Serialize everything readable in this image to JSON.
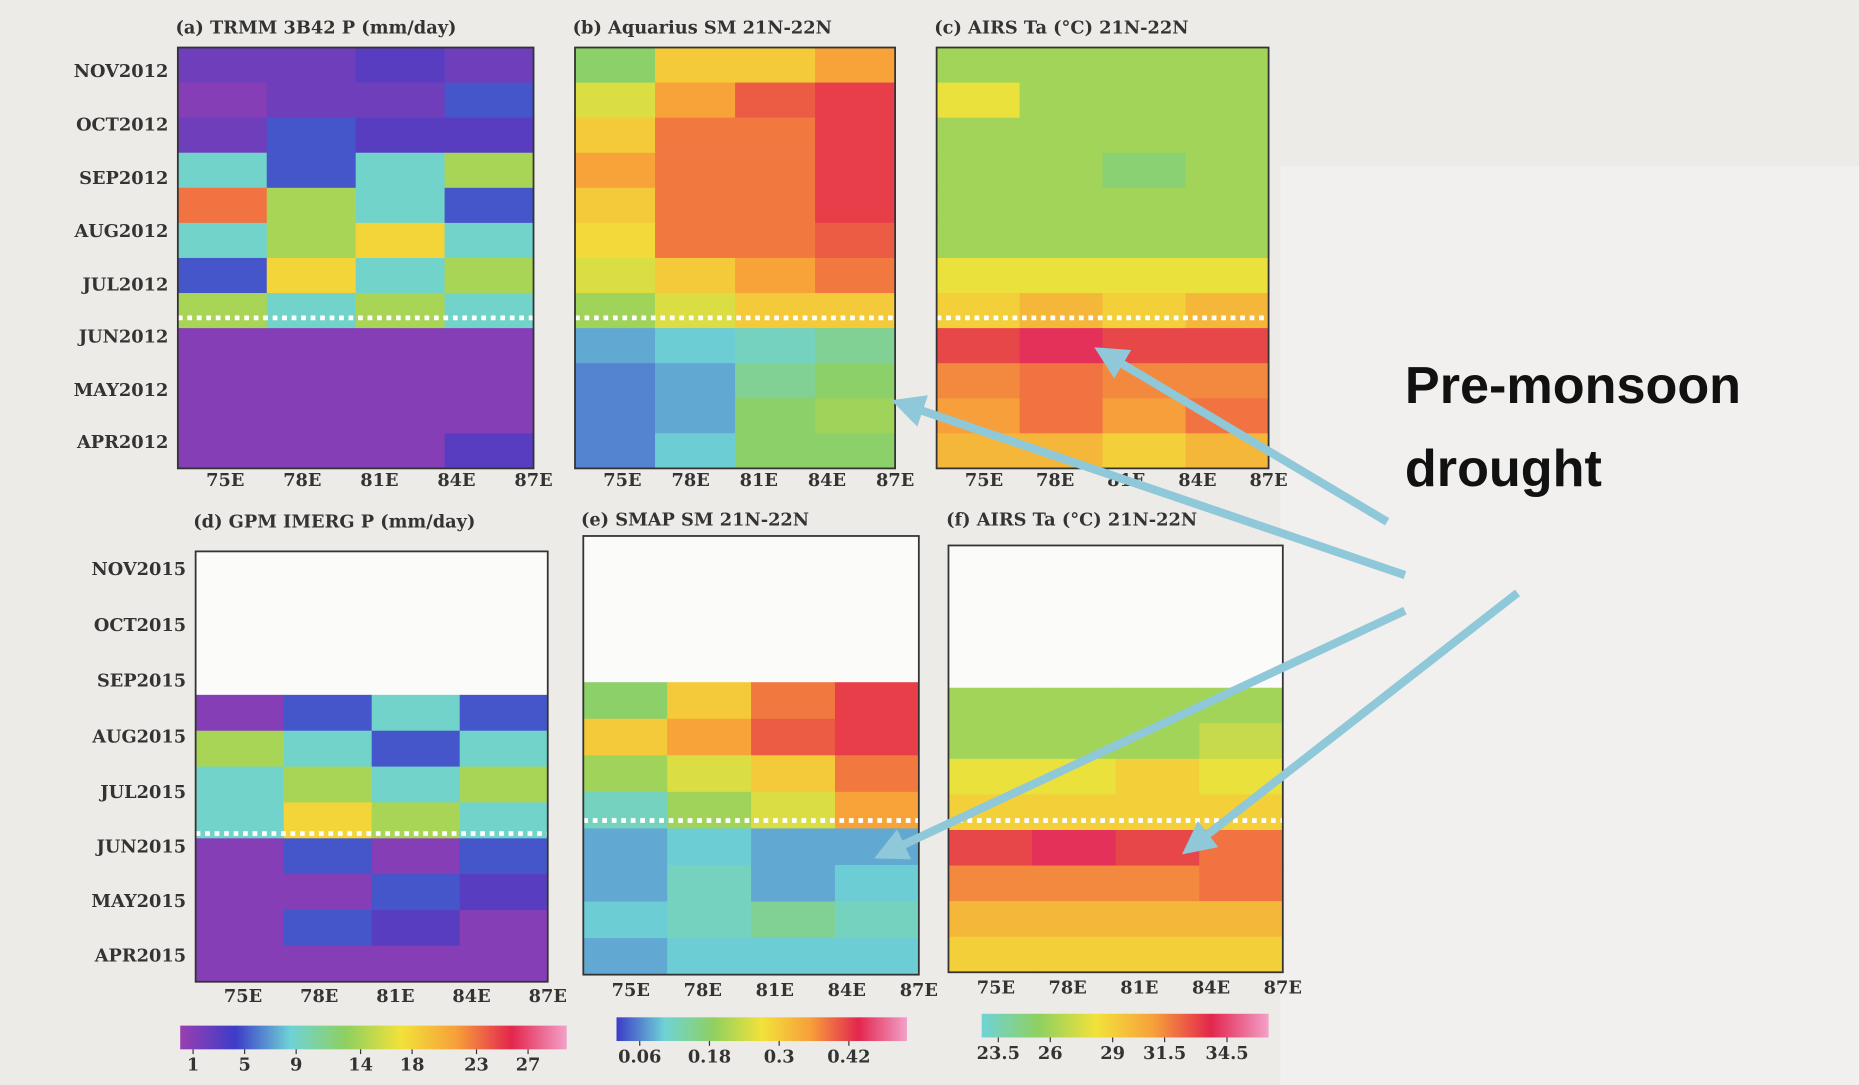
{
  "chart_data": [
    {
      "type": "heatmap",
      "title": "(a) TRMM 3B42 P (mm/day)",
      "colorbar": 0,
      "ylabels": [
        "NOV2012",
        "OCT2012",
        "SEP2012",
        "AUG2012",
        "JUL2012",
        "JUN2012",
        "MAY2012",
        "APR2012"
      ],
      "xlabels": [
        "75E",
        "78E",
        "81E",
        "84E",
        "87E"
      ],
      "values": [
        [
          2,
          2,
          3,
          2
        ],
        [
          1,
          2,
          2,
          5
        ],
        [
          2,
          5,
          3,
          3
        ],
        [
          9,
          5,
          9,
          14
        ],
        [
          23,
          14,
          9,
          5
        ],
        [
          9,
          14,
          18,
          9
        ],
        [
          5,
          18,
          9,
          14
        ],
        [
          14,
          9,
          14,
          9
        ],
        [
          1,
          1,
          1,
          1
        ],
        [
          1,
          1,
          1,
          1
        ],
        [
          1,
          1,
          1,
          1
        ],
        [
          1,
          1,
          1,
          3
        ]
      ]
    },
    {
      "type": "heatmap",
      "title": "(b) Aquarius SM 21N-22N",
      "colorbar": 1,
      "xlabels": [
        "75E",
        "78E",
        "81E",
        "84E",
        "87E"
      ],
      "values": [
        [
          0.18,
          0.3,
          0.3,
          0.35
        ],
        [
          0.25,
          0.35,
          0.4,
          0.42
        ],
        [
          0.3,
          0.38,
          0.38,
          0.42
        ],
        [
          0.35,
          0.38,
          0.38,
          0.42
        ],
        [
          0.3,
          0.38,
          0.38,
          0.42
        ],
        [
          0.28,
          0.38,
          0.38,
          0.4
        ],
        [
          0.25,
          0.3,
          0.35,
          0.38
        ],
        [
          0.2,
          0.25,
          0.3,
          0.3
        ],
        [
          0.08,
          0.1,
          0.12,
          0.15
        ],
        [
          0.06,
          0.08,
          0.15,
          0.18
        ],
        [
          0.06,
          0.08,
          0.18,
          0.2
        ],
        [
          0.06,
          0.1,
          0.18,
          0.18
        ]
      ]
    },
    {
      "type": "heatmap",
      "title": "(c) AIRS Ta (°C) 21N-22N",
      "colorbar": 2,
      "xlabels": [
        "75E",
        "78E",
        "81E",
        "84E",
        "87E"
      ],
      "values": [
        [
          26,
          26,
          26,
          26
        ],
        [
          28,
          26,
          26,
          26
        ],
        [
          26,
          26,
          26,
          26
        ],
        [
          26,
          26,
          25,
          26
        ],
        [
          26,
          26,
          26,
          26
        ],
        [
          26,
          26,
          26,
          26
        ],
        [
          28,
          28,
          28,
          28
        ],
        [
          29,
          30,
          29,
          30
        ],
        [
          33,
          34,
          33,
          33
        ],
        [
          31.5,
          32,
          31.5,
          31.5
        ],
        [
          31,
          32,
          31,
          32
        ],
        [
          30,
          30,
          29,
          30
        ]
      ]
    },
    {
      "type": "heatmap",
      "title": "(d) GPM IMERG P (mm/day)",
      "colorbar": 0,
      "ylabels": [
        "NOV2015",
        "OCT2015",
        "SEP2015",
        "AUG2015",
        "JUL2015",
        "JUN2015",
        "MAY2015",
        "APR2015"
      ],
      "xlabels": [
        "75E",
        "78E",
        "81E",
        "84E",
        "87E"
      ],
      "values": [
        [
          null,
          null,
          null,
          null
        ],
        [
          null,
          null,
          null,
          null
        ],
        [
          null,
          null,
          null,
          null
        ],
        [
          null,
          null,
          null,
          null
        ],
        [
          1,
          5,
          9,
          5
        ],
        [
          14,
          9,
          5,
          9
        ],
        [
          9,
          14,
          9,
          14
        ],
        [
          9,
          18,
          14,
          9
        ],
        [
          1,
          5,
          1,
          5
        ],
        [
          1,
          1,
          5,
          3
        ],
        [
          1,
          5,
          3,
          1
        ],
        [
          1,
          1,
          1,
          1
        ]
      ]
    },
    {
      "type": "heatmap",
      "title": "(e) SMAP SM 21N-22N",
      "colorbar": 1,
      "xlabels": [
        "75E",
        "78E",
        "81E",
        "84E",
        "87E"
      ],
      "values": [
        [
          null,
          null,
          null,
          null
        ],
        [
          null,
          null,
          null,
          null
        ],
        [
          null,
          null,
          null,
          null
        ],
        [
          null,
          null,
          null,
          null
        ],
        [
          0.18,
          0.3,
          0.38,
          0.42
        ],
        [
          0.3,
          0.35,
          0.4,
          0.42
        ],
        [
          0.2,
          0.25,
          0.3,
          0.38
        ],
        [
          0.12,
          0.2,
          0.25,
          0.35
        ],
        [
          0.08,
          0.1,
          0.08,
          0.08
        ],
        [
          0.08,
          0.12,
          0.08,
          0.1
        ],
        [
          0.1,
          0.12,
          0.15,
          0.12
        ],
        [
          0.08,
          0.1,
          0.1,
          0.1
        ]
      ]
    },
    {
      "type": "heatmap",
      "title": "(f) AIRS Ta (°C) 21N-22N",
      "colorbar": 2,
      "xlabels": [
        "75E",
        "78E",
        "81E",
        "84E",
        "87E"
      ],
      "values": [
        [
          null,
          null,
          null,
          null
        ],
        [
          null,
          null,
          null,
          null
        ],
        [
          null,
          null,
          null,
          null
        ],
        [
          null,
          null,
          null,
          null
        ],
        [
          26,
          26,
          26,
          26
        ],
        [
          26,
          26,
          26,
          27
        ],
        [
          28,
          28,
          29,
          28
        ],
        [
          29,
          29,
          29,
          29
        ],
        [
          33,
          34,
          33,
          32
        ],
        [
          31.5,
          31.5,
          31.5,
          32
        ],
        [
          30,
          30,
          30,
          30
        ],
        [
          29,
          29,
          29,
          29
        ]
      ]
    }
  ],
  "colorbars": [
    {
      "lim": [
        0,
        30
      ],
      "ticks": [
        1,
        5,
        9,
        14,
        18,
        23,
        27
      ],
      "colors": [
        "#9b3fb0",
        "#3c3cc8",
        "#6fd3d6",
        "#8fd060",
        "#f2e23a",
        "#f7a03a",
        "#e3264e",
        "#f2a0c8"
      ]
    },
    {
      "lim": [
        0.02,
        0.52
      ],
      "ticks": [
        0.06,
        0.18,
        0.3,
        0.42
      ],
      "colors": [
        "#3c3cc8",
        "#6fd3d6",
        "#8fd060",
        "#f2e23a",
        "#f7a03a",
        "#e3264e",
        "#f2a0c8"
      ]
    },
    {
      "lim": [
        22.7,
        36.5
      ],
      "ticks": [
        23.5,
        26,
        29,
        31.5,
        34.5
      ],
      "colors": [
        "#6fd3d6",
        "#8fd060",
        "#f2e23a",
        "#f7a03a",
        "#e3264e",
        "#f2a0c8"
      ]
    }
  ],
  "annotation": [
    "Pre-monsoon",
    "drought"
  ]
}
